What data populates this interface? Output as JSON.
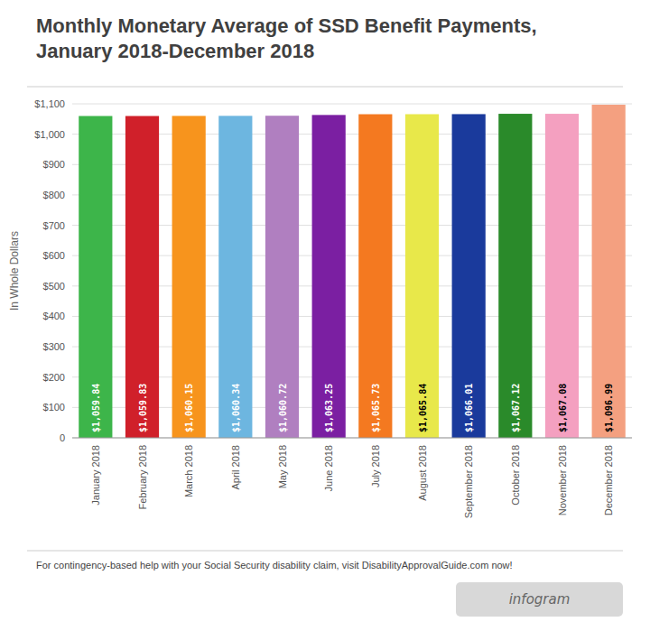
{
  "chart_data": {
    "type": "bar",
    "title": "Monthly Monetary Average of SSD Benefit Payments, January 2018-December 2018",
    "y_label": "In Whole Dollars",
    "categories": [
      "January 2018",
      "February 2018",
      "March 2018",
      "April 2018",
      "May 2018",
      "June 2018",
      "July 2018",
      "August 2018",
      "September 2018",
      "October 2018",
      "November 2018",
      "December 2018"
    ],
    "values": [
      1059.84,
      1059.83,
      1060.15,
      1060.34,
      1060.72,
      1063.25,
      1065.73,
      1065.84,
      1066.01,
      1067.12,
      1067.08,
      1096.99
    ],
    "value_labels": [
      "$1,059.84",
      "$1,059.83",
      "$1,060.15",
      "$1,060.34",
      "$1,060.72",
      "$1,063.25",
      "$1,065.73",
      "$1,065.84",
      "$1,066.01",
      "$1,067.12",
      "$1,067.08",
      "$1,096.99"
    ],
    "colors": [
      "#3db54a",
      "#d0202a",
      "#f7941d",
      "#6db6e0",
      "#b07fc0",
      "#7b1fa2",
      "#f47920",
      "#e8e84a",
      "#1a3a9c",
      "#2a8a2a",
      "#f4a0c0",
      "#f4a080"
    ],
    "ylim": [
      0,
      1100
    ],
    "yticks": [
      0,
      {
        "value": 100,
        "label": "$100"
      },
      {
        "value": 200,
        "label": "$200"
      },
      {
        "value": 300,
        "label": "$300"
      },
      {
        "value": 400,
        "label": "$400"
      },
      {
        "value": 500,
        "label": "$500"
      },
      {
        "value": 600,
        "label": "$600"
      },
      {
        "value": 700,
        "label": "$700"
      },
      {
        "value": 800,
        "label": "$800"
      },
      {
        "value": 900,
        "label": "$900"
      },
      {
        "value": 1000,
        "label": "$1,000"
      },
      {
        "value": 1100,
        "label": "$1,100"
      }
    ],
    "grid": true,
    "data_labels": true,
    "annotations": [
      "For contingency-based help with your Social Security disability claim, visit DisabilityApprovalGuide.com now!",
      "infogram"
    ]
  }
}
